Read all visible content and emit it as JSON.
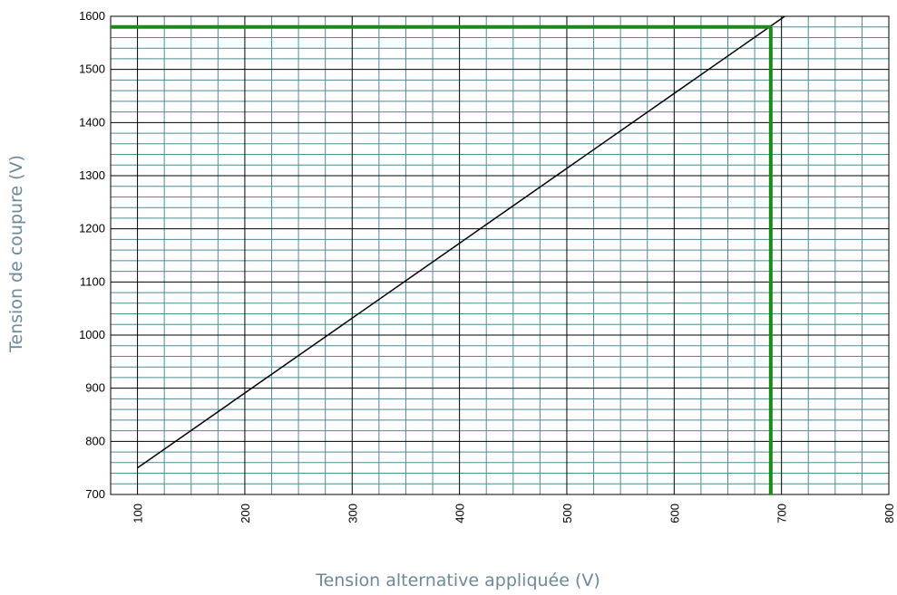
{
  "chart_data": {
    "type": "line",
    "xlabel": "Tension alternative appliquée (V)",
    "ylabel": "Tension de coupure (V)",
    "xlim": [
      75,
      800
    ],
    "ylim": [
      700,
      1600
    ],
    "x_ticks": [
      "100",
      "200",
      "300",
      "400",
      "500",
      "600",
      "700",
      "800"
    ],
    "y_ticks": [
      "700",
      "800",
      "900",
      "1000",
      "1100",
      "1200",
      "1300",
      "1400",
      "1500",
      "1600"
    ],
    "grid": true,
    "series": [
      {
        "x": [
          100,
          703
        ],
        "y": [
          750,
          1600
        ],
        "color": "#000000"
      }
    ],
    "reference_lines": {
      "x": 690,
      "y": 1580,
      "color": "#1a8a1a"
    }
  }
}
